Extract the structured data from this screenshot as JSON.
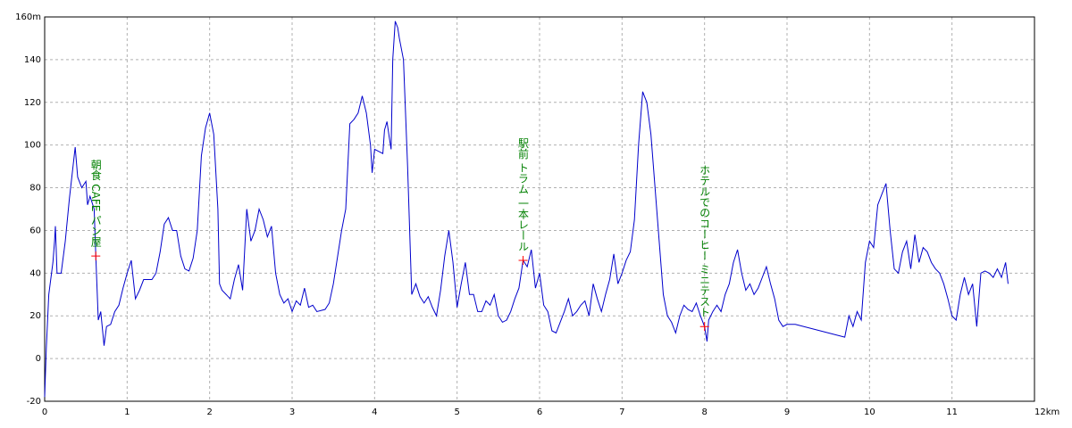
{
  "chart_data": {
    "type": "line",
    "x": [
      0,
      0.02,
      0.05,
      0.1,
      0.12,
      0.13,
      0.15,
      0.2,
      0.25,
      0.3,
      0.37,
      0.4,
      0.45,
      0.5,
      0.52,
      0.55,
      0.6,
      0.62,
      0.65,
      0.68,
      0.72,
      0.75,
      0.8,
      0.85,
      0.9,
      0.95,
      1.0,
      1.05,
      1.1,
      1.15,
      1.2,
      1.3,
      1.35,
      1.4,
      1.45,
      1.5,
      1.55,
      1.6,
      1.65,
      1.7,
      1.75,
      1.8,
      1.85,
      1.9,
      1.95,
      2.0,
      2.05,
      2.1,
      2.12,
      2.15,
      2.2,
      2.25,
      2.3,
      2.35,
      2.4,
      2.45,
      2.5,
      2.55,
      2.6,
      2.65,
      2.7,
      2.75,
      2.8,
      2.85,
      2.9,
      2.95,
      3.0,
      3.05,
      3.1,
      3.15,
      3.2,
      3.25,
      3.3,
      3.4,
      3.45,
      3.5,
      3.6,
      3.65,
      3.7,
      3.75,
      3.8,
      3.85,
      3.9,
      3.95,
      3.97,
      4.0,
      4.05,
      4.1,
      4.12,
      4.15,
      4.18,
      4.2,
      4.22,
      4.25,
      4.28,
      4.3,
      4.35,
      4.4,
      4.45,
      4.5,
      4.55,
      4.6,
      4.65,
      4.7,
      4.75,
      4.8,
      4.85,
      4.9,
      4.95,
      5.0,
      5.05,
      5.1,
      5.15,
      5.2,
      5.25,
      5.3,
      5.35,
      5.4,
      5.45,
      5.5,
      5.55,
      5.6,
      5.65,
      5.7,
      5.75,
      5.8,
      5.85,
      5.9,
      5.95,
      6.0,
      6.05,
      6.1,
      6.15,
      6.2,
      6.25,
      6.3,
      6.35,
      6.4,
      6.45,
      6.5,
      6.55,
      6.6,
      6.65,
      6.7,
      6.75,
      6.8,
      6.85,
      6.9,
      6.95,
      7.0,
      7.05,
      7.1,
      7.15,
      7.2,
      7.25,
      7.3,
      7.35,
      7.4,
      7.45,
      7.5,
      7.55,
      7.6,
      7.65,
      7.7,
      7.75,
      7.8,
      7.85,
      7.9,
      7.95,
      8.0,
      8.03,
      8.05,
      8.1,
      8.15,
      8.2,
      8.25,
      8.3,
      8.35,
      8.4,
      8.45,
      8.5,
      8.55,
      8.6,
      8.65,
      8.7,
      8.75,
      8.8,
      8.85,
      8.9,
      8.95,
      9.0,
      9.1,
      9.7,
      9.75,
      9.8,
      9.85,
      9.9,
      9.95,
      10.0,
      10.05,
      10.1,
      10.15,
      10.2,
      10.25,
      10.3,
      10.35,
      10.4,
      10.45,
      10.5,
      10.55,
      10.6,
      10.65,
      10.7,
      10.75,
      10.8,
      10.85,
      10.9,
      10.95,
      11.0,
      11.05,
      11.1,
      11.15,
      11.2,
      11.25,
      11.3,
      11.35,
      11.4,
      11.45,
      11.5,
      11.55,
      11.6,
      11.65,
      11.68
    ],
    "series": [
      {
        "color": "#0000cc",
        "values": [
          -18,
          5,
          30,
          45,
          55,
          62,
          40,
          40,
          55,
          75,
          99,
          85,
          80,
          83,
          72,
          76,
          70,
          48,
          18,
          22,
          6,
          15,
          16,
          22,
          25,
          33,
          40,
          46,
          28,
          32,
          37,
          37,
          40,
          50,
          63,
          66,
          60,
          60,
          48,
          42,
          41,
          47,
          60,
          95,
          108,
          115,
          105,
          70,
          35,
          32,
          30,
          28,
          37,
          44,
          32,
          70,
          55,
          60,
          70,
          65,
          57,
          62,
          40,
          30,
          26,
          28,
          22,
          27,
          25,
          33,
          24,
          25,
          22,
          23,
          26,
          35,
          60,
          70,
          110,
          112,
          115,
          123,
          115,
          100,
          87,
          98,
          97,
          96,
          107,
          111,
          103,
          98,
          140,
          158,
          155,
          150,
          140,
          90,
          30,
          35,
          29,
          26,
          29,
          24,
          20,
          32,
          48,
          60,
          45,
          24,
          35,
          45,
          30,
          30,
          22,
          22,
          27,
          25,
          30,
          20,
          17,
          18,
          22,
          28,
          33,
          46,
          43,
          51,
          33,
          40,
          25,
          22,
          13,
          12,
          17,
          22,
          28,
          20,
          22,
          25,
          27,
          20,
          35,
          28,
          22,
          30,
          37,
          49,
          35,
          40,
          46,
          50,
          65,
          100,
          125,
          120,
          105,
          80,
          55,
          30,
          20,
          17,
          12,
          20,
          25,
          23,
          22,
          26,
          20,
          15,
          8,
          18,
          22,
          25,
          22,
          30,
          35,
          45,
          51,
          40,
          32,
          35,
          30,
          33,
          38,
          43,
          35,
          28,
          18,
          15,
          16,
          16,
          10,
          20,
          15,
          22,
          18,
          45,
          55,
          52,
          72,
          77,
          82,
          60,
          42,
          40,
          50,
          55,
          42,
          58,
          45,
          52,
          50,
          45,
          42,
          40,
          35,
          28,
          20,
          18,
          30,
          38,
          30,
          35,
          15,
          40,
          41,
          40,
          38,
          42,
          38,
          45,
          35
        ]
      }
    ],
    "xlim": [
      0,
      12
    ],
    "xticks": [
      0,
      1,
      2,
      3,
      4,
      5,
      6,
      7,
      8,
      9,
      10,
      11,
      {
        "value": 12,
        "label": "12km"
      }
    ],
    "ylim": [
      -20,
      160
    ],
    "yticks": [
      -20,
      0,
      20,
      40,
      60,
      80,
      100,
      120,
      140,
      {
        "value": 160,
        "label": "160m"
      }
    ],
    "grid": true,
    "annotations": [
      {
        "text": "朝食 CAFE パン屋",
        "x": 0.62,
        "y": 48,
        "color": "#ff0000"
      },
      {
        "text": "駅前 トラム 一本レール",
        "x": 5.8,
        "y": 46,
        "color": "#ff0000"
      },
      {
        "text": "ホテルでのコーヒー ミニテスト",
        "x": 8.0,
        "y": 15,
        "color": "#ff0000"
      }
    ]
  }
}
